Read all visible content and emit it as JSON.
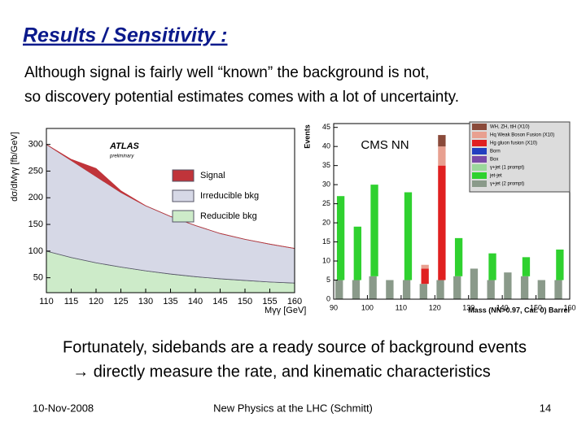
{
  "title": "Results / Sensitivity :",
  "intro": [
    "Although signal is fairly well “known” the background is not,",
    "so discovery potential estimates comes with a lot of uncertainty."
  ],
  "chart_data": [
    {
      "type": "stacked-area",
      "annotations": [
        "ATLAS",
        "preliminary"
      ],
      "y_label": "dσ/dMγγ [fb/GeV]",
      "x_label": "Mγγ [GeV]",
      "x": [
        110,
        115,
        120,
        125,
        130,
        135,
        140,
        145,
        150,
        155,
        160
      ],
      "series": [
        {
          "name": "Reducible bkg",
          "color": "#cdebc9",
          "values": [
            100,
            88,
            78,
            70,
            63,
            57,
            52,
            48,
            45,
            42,
            40
          ]
        },
        {
          "name": "Irreducible bkg",
          "color": "#d6d8e6",
          "values": [
            200,
            182,
            162,
            140,
            122,
            108,
            96,
            85,
            77,
            71,
            65
          ]
        },
        {
          "name": "Signal",
          "color": "#c0343a",
          "values": [
            0,
            2,
            15,
            3,
            0,
            0,
            0,
            0,
            0,
            0,
            0
          ]
        }
      ],
      "xlim": [
        110,
        160
      ],
      "ylim": [
        22,
        330
      ],
      "xticks": [
        110,
        115,
        120,
        125,
        130,
        135,
        140,
        145,
        150,
        155,
        160
      ],
      "yticks": [
        50,
        100,
        150,
        200,
        250,
        300
      ]
    },
    {
      "type": "stacked-histogram",
      "annotations": [
        "CMS NN"
      ],
      "y_label": "Events",
      "x_label": "Mass (NN>0.97, Cat. 0) Barrel",
      "bins": [
        90,
        95,
        100,
        105,
        110,
        115,
        120,
        125,
        130,
        135,
        140,
        145,
        150,
        155,
        160
      ],
      "series": [
        {
          "name": "γ+jet (2 prompt)",
          "color": "#8a9a8a",
          "values": [
            5,
            5,
            6,
            5,
            5,
            4,
            5,
            6,
            8,
            5,
            7,
            6,
            5,
            5
          ]
        },
        {
          "name": "jet-jet",
          "color": "#2fd12f",
          "values": [
            22,
            14,
            24,
            0,
            23,
            0,
            0,
            10,
            0,
            7,
            0,
            5,
            0,
            8
          ]
        },
        {
          "name": "γ+jet (1 prompt)",
          "color": "#9bd89b",
          "values": [
            0,
            0,
            0,
            0,
            0,
            0,
            0,
            0,
            0,
            0,
            0,
            0,
            0,
            0
          ]
        },
        {
          "name": "Box",
          "color": "#7a4aa8",
          "values": [
            0,
            0,
            0,
            0,
            0,
            0,
            0,
            0,
            0,
            0,
            0,
            0,
            0,
            0
          ]
        },
        {
          "name": "Born",
          "color": "#2340c0",
          "values": [
            0,
            0,
            0,
            0,
            0,
            0,
            0,
            0,
            0,
            0,
            0,
            0,
            0,
            0
          ]
        },
        {
          "name": "Hg gluon fusion (X10)",
          "color": "#e02020",
          "values": [
            0,
            0,
            0,
            0,
            0,
            4,
            30,
            0,
            0,
            0,
            0,
            0,
            0,
            0
          ]
        },
        {
          "name": "Hq Weak Boson Fusion (X10)",
          "color": "#e8a090",
          "values": [
            0,
            0,
            0,
            0,
            0,
            1,
            5,
            0,
            0,
            0,
            0,
            0,
            0,
            0
          ]
        },
        {
          "name": "WH, ZH, ttH (X10)",
          "color": "#8a4a3a",
          "values": [
            0,
            0,
            0,
            0,
            0,
            0,
            3,
            0,
            0,
            0,
            0,
            0,
            0,
            0
          ]
        }
      ],
      "xlim": [
        90,
        160
      ],
      "ylim": [
        0,
        46
      ],
      "xticks": [
        90,
        100,
        110,
        120,
        130,
        140,
        150,
        160
      ],
      "yticks": [
        0,
        5,
        10,
        15,
        20,
        25,
        30,
        35,
        40,
        45
      ]
    }
  ],
  "conclusion": [
    "Fortunately, sidebands are a ready source of background events",
    "→ directly measure the rate, and kinematic characteristics"
  ],
  "footer": {
    "date": "10-Nov-2008",
    "center": "New Physics at the LHC (Schmitt)",
    "page": "14"
  }
}
